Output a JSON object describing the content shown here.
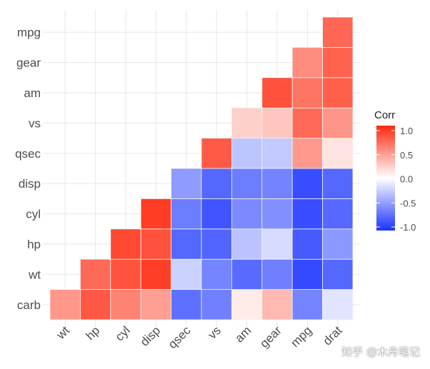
{
  "chart_data": {
    "type": "heatmap",
    "title": "",
    "x_categories": [
      "wt",
      "hp",
      "cyl",
      "disp",
      "qsec",
      "vs",
      "am",
      "gear",
      "mpg",
      "drat"
    ],
    "y_categories": [
      "carb",
      "wt",
      "hp",
      "cyl",
      "disp",
      "qsec",
      "vs",
      "am",
      "gear",
      "mpg"
    ],
    "var_order": [
      "carb",
      "wt",
      "hp",
      "cyl",
      "disp",
      "qsec",
      "vs",
      "am",
      "gear",
      "mpg",
      "drat"
    ],
    "triangle": "lower",
    "correlations": {
      "mpg": {
        "cyl": -0.85,
        "disp": -0.85,
        "hp": -0.78,
        "drat": 0.68,
        "wt": -0.87,
        "qsec": 0.42,
        "vs": 0.66,
        "am": 0.6,
        "gear": 0.48,
        "carb": -0.55
      },
      "cyl": {
        "disp": 0.9,
        "hp": 0.83,
        "drat": -0.7,
        "wt": 0.78,
        "qsec": -0.59,
        "vs": -0.81,
        "am": -0.52,
        "gear": -0.49,
        "carb": 0.53
      },
      "disp": {
        "hp": 0.79,
        "drat": -0.71,
        "wt": 0.89,
        "qsec": -0.43,
        "vs": -0.71,
        "am": -0.59,
        "gear": -0.56,
        "carb": 0.39
      },
      "hp": {
        "drat": -0.45,
        "wt": 0.66,
        "qsec": -0.71,
        "vs": -0.72,
        "am": -0.24,
        "gear": -0.13,
        "carb": 0.75
      },
      "drat": {
        "wt": -0.71,
        "qsec": 0.09,
        "vs": 0.44,
        "am": 0.71,
        "gear": 0.7,
        "carb": -0.09
      },
      "wt": {
        "qsec": -0.17,
        "vs": -0.55,
        "am": -0.69,
        "gear": -0.58,
        "carb": 0.43
      },
      "qsec": {
        "vs": 0.74,
        "am": -0.23,
        "gear": -0.21,
        "carb": -0.66
      },
      "vs": {
        "am": 0.17,
        "gear": 0.21,
        "carb": -0.57
      },
      "am": {
        "gear": 0.79,
        "carb": 0.06
      },
      "gear": {
        "carb": 0.27
      }
    },
    "legend": {
      "title": "Corr",
      "ticks": [
        "1.0",
        "0.5",
        "0.0",
        "-0.5",
        "-1.0"
      ],
      "tick_values": [
        1,
        0.5,
        0,
        -0.5,
        -1
      ],
      "placement": "right"
    },
    "colors": {
      "low": "#1a33ff",
      "mid": "#ffffff",
      "high": "#ff2a10"
    },
    "range": [
      -1,
      1
    ],
    "grid": true
  },
  "watermark": "知乎 @木舟笔记"
}
